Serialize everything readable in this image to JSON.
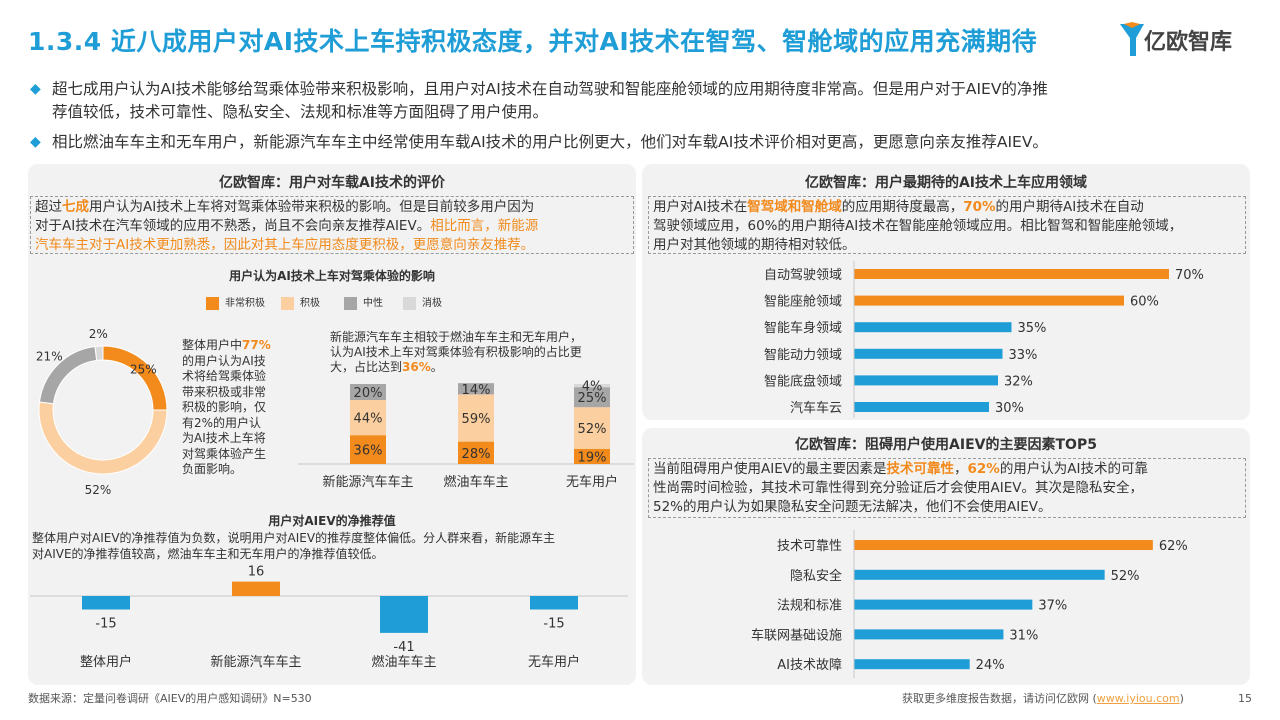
{
  "header": {
    "title": "1.3.4 近八成用户对AI技术上车持积极态度，并对AI技术在智驾、智舱域的应用充满期待",
    "logo_text": "亿欧智库"
  },
  "bullets": [
    "超七成用户认为AI技术能够给驾乘体验带来积极影响，且用户对AI技术在自动驾驶和智能座舱领域的应用期待度非常高。但是用户对于AIEV的净推",
    "荐值较低，技术可靠性、隐私安全、法规和标准等方面阻碍了用户使用。",
    "相比燃油车车主和无车用户，新能源汽车车主中经常使用车载AI技术的用户比例更大，他们对车载AI技术评价相对更高，更愿意向亲友推荐AIEV。"
  ],
  "left_panel": {
    "title": "亿欧智库：用户对车载AI技术的评价",
    "desc_1": "超过",
    "desc_hl": "七成",
    "desc_2": "用户认为AI技术上车将对驾乘体验带来积极的影响。但是目前较多用户因为",
    "desc_3": "对于AI技术在汽车领域的应用不熟悉，尚且不会向亲友推荐AIEV。",
    "desc_hl2": "相比而言，新能源",
    "desc_hl3": "汽车车主对于AI技术更加熟悉，因此对其上车应用态度更积极，更愿意向亲友推荐。",
    "impact_title": "用户认为AI技术上车对驾乘体验的影响",
    "donut_note_1": "整体用户中",
    "donut_note_hl": "77%",
    "donut_note_lines": [
      "的用户认为AI技",
      "术将给驾乘体验",
      "带来积极或非常",
      "积极的影响，仅",
      "有2%的用户认",
      "为AI技术上车将",
      "对驾乘体验产生",
      "负面影响。"
    ],
    "stack_note_lines": [
      "新能源汽车车主相较于燃油车车主和无车用户，",
      "认为AI技术上车对驾乘体验有积极影响的占比更"
    ],
    "stack_note_last": "大，占比达到",
    "stack_note_hl": "36%",
    "stack_note_end": "。",
    "nps_title": "用户对AIEV的净推荐值",
    "nps_note_1": "整体用户对AIEV的净推荐值为负数，说明用户对AIEV的推荐度整体偏低。分人群来看，新能源车主",
    "nps_note_2": "对AIVE的净推荐值较高，燃油车车主和无车用户的净推荐值较低。"
  },
  "right_panel": {
    "title_top": "亿欧智库：用户最期待的AI技术上车应用领域",
    "desc_top_1": "用户对AI技术在",
    "desc_top_hl": "智驾域和智舱域",
    "desc_top_2": "的应用期待度最高，",
    "desc_top_hl2": "70%",
    "desc_top_3": "的用户期待AI技术在自动",
    "desc_top_4": "驾驶领域应用，60%的用户期待AI技术在智能座舱领域应用。相比智驾和智能座舱领域，",
    "desc_top_5": "用户对其他领域的期待相对较低。",
    "title_bottom": "亿欧智库：阻碍用户使用AIEV的主要因素TOP5",
    "desc_bot_1": "当前阻碍用户使用AIEV的最主要因素是",
    "desc_bot_hl": "技术可靠性",
    "desc_bot_2": "，",
    "desc_bot_hl2": "62%",
    "desc_bot_3": "的用户认为AI技术的可靠",
    "desc_bot_4": "性尚需时间检验，其技术可靠性得到充分验证后才会使用AIEV。其次是隐私安全，",
    "desc_bot_5": "52%的用户认为如果隐私安全问题无法解决，他们不会使用AIEV。"
  },
  "footer": {
    "source": "数据来源：定量问卷调研《AIEV的用户感知调研》N=530",
    "more": "获取更多维度报告数据，请访问亿欧网 (",
    "link": "www.iyiou.com",
    "more_end": ")",
    "page": "15"
  },
  "colors": {
    "orange": "#f28a1c",
    "light_orange": "#fbcf9f",
    "gray": "#a6a6a6",
    "light_gray": "#d9d9d9",
    "blue": "#1f9dd6"
  },
  "chart_data": [
    {
      "type": "pie",
      "title": "用户认为AI技术上车对驾乘体验的影响",
      "categories": [
        "非常积极",
        "积极",
        "中性",
        "消极"
      ],
      "values": [
        25,
        52,
        21,
        2
      ],
      "labels": [
        "25%",
        "52%",
        "21%",
        "2%"
      ]
    },
    {
      "type": "bar",
      "stacked": true,
      "categories": [
        "新能源汽车车主",
        "燃油车车主",
        "无车用户"
      ],
      "series": [
        {
          "name": "非常积极",
          "values": [
            36,
            28,
            19
          ]
        },
        {
          "name": "积极",
          "values": [
            44,
            59,
            52
          ]
        },
        {
          "name": "中性",
          "values": [
            20,
            14,
            25
          ]
        },
        {
          "name": "消极",
          "values": [
            0,
            0,
            4
          ]
        }
      ],
      "ylim": [
        0,
        100
      ]
    },
    {
      "type": "bar",
      "title": "用户对AIEV的净推荐值",
      "categories": [
        "整体用户",
        "新能源汽车车主",
        "燃油车车主",
        "无车用户"
      ],
      "values": [
        -15,
        16,
        -41,
        -15
      ],
      "labels": [
        "-15",
        "16",
        "-41",
        "-15"
      ]
    },
    {
      "type": "bar",
      "orientation": "horizontal",
      "title": "亿欧智库：用户最期待的AI技术上车应用领域",
      "categories": [
        "自动驾驶领域",
        "智能座舱领域",
        "智能车身领域",
        "智能动力领域",
        "智能底盘领域",
        "汽车车云"
      ],
      "values": [
        70,
        60,
        35,
        33,
        32,
        30
      ],
      "labels": [
        "70%",
        "60%",
        "35%",
        "33%",
        "32%",
        "30%"
      ],
      "highlight": [
        true,
        true,
        false,
        false,
        false,
        false
      ]
    },
    {
      "type": "bar",
      "orientation": "horizontal",
      "title": "亿欧智库：阻碍用户使用AIEV的主要因素TOP5",
      "categories": [
        "技术可靠性",
        "隐私安全",
        "法规和标准",
        "车联网基础设施",
        "AI技术故障"
      ],
      "values": [
        62,
        52,
        37,
        31,
        24
      ],
      "labels": [
        "62%",
        "52%",
        "37%",
        "31%",
        "24%"
      ],
      "highlight": [
        true,
        false,
        false,
        false,
        false
      ]
    }
  ]
}
